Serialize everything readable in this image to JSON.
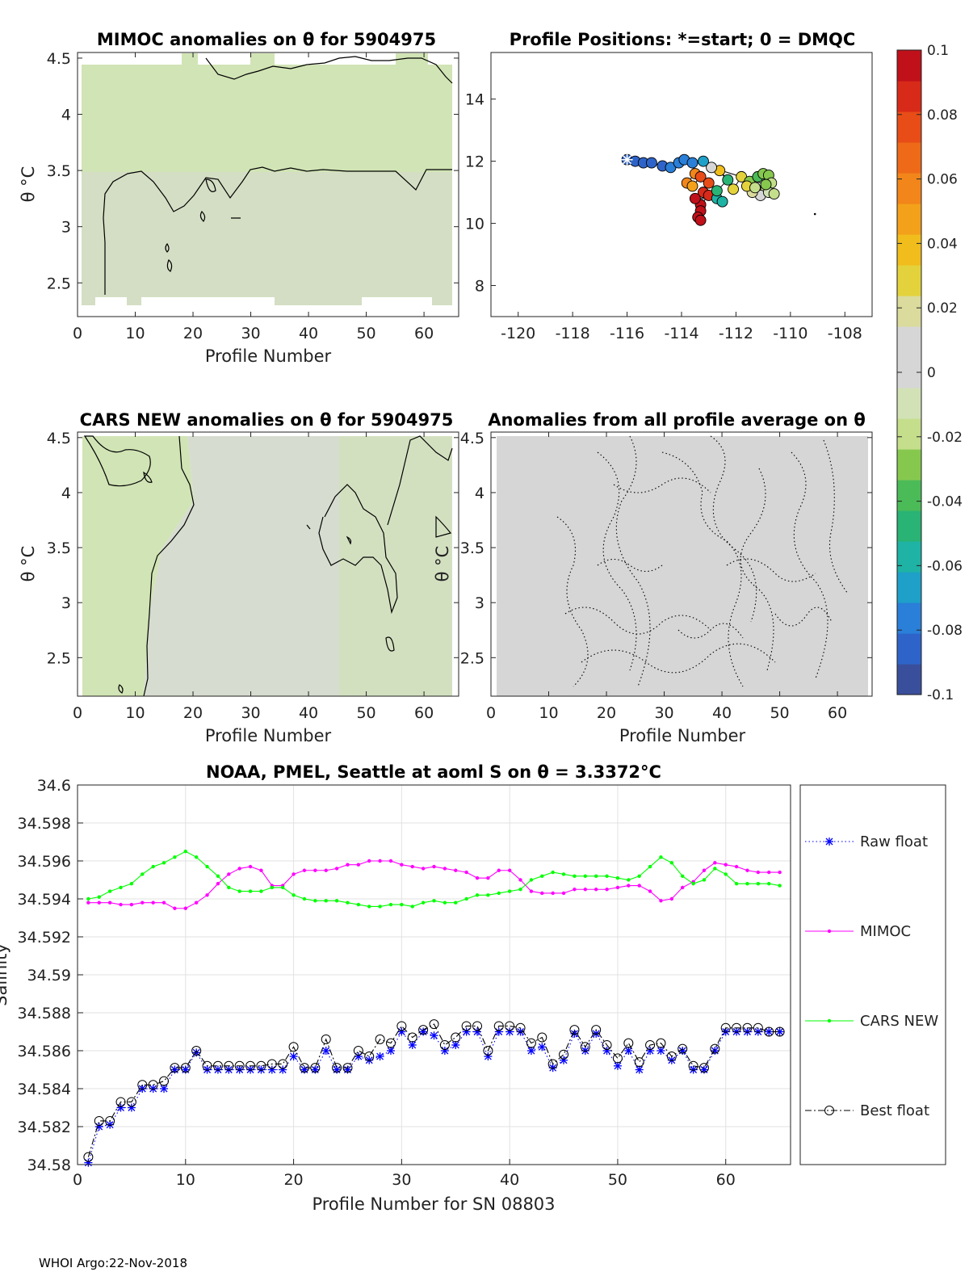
{
  "footer": "WHOI Argo:22-Nov-2018",
  "colorbar": {
    "ticks": [
      "0.1",
      "0.08",
      "0.06",
      "0.04",
      "0.02",
      "0",
      "-0.02",
      "-0.04",
      "-0.06",
      "-0.08",
      "-0.1"
    ],
    "range": [
      -0.1,
      0.1
    ],
    "colors": [
      "#3a4f9c",
      "#2e64c9",
      "#2a7fd8",
      "#1ea0c8",
      "#1eb3a4",
      "#29b374",
      "#4bbb58",
      "#86c84e",
      "#c4de8c",
      "#d2e2b6",
      "#d6d6d6",
      "#d6d6d6",
      "#dadb9c",
      "#e3d23c",
      "#f0bd1c",
      "#f3a11a",
      "#f2861a",
      "#ee6a18",
      "#e84d17",
      "#d82a18",
      "#c0101a"
    ]
  },
  "chart_data": [
    {
      "type": "heatmap",
      "title": "MIMOC anomalies on θ  for 5904975",
      "xlabel": "Profile Number",
      "ylabel": "θ °C",
      "xlim": [
        0,
        66
      ],
      "ylim": [
        2.2,
        4.55
      ],
      "xticks": [
        "0",
        "10",
        "20",
        "30",
        "40",
        "50",
        "60"
      ],
      "yticks": [
        "2.5",
        "3",
        "3.5",
        "4",
        "4.5"
      ],
      "fill": "near -0.015 above θ≈3.45 °C, near -0.01 below"
    },
    {
      "type": "scatter",
      "title": "Profile Positions: *=start; 0 = DMQC",
      "xlim": [
        -121,
        -107
      ],
      "ylim": [
        7,
        15.5
      ],
      "xticks": [
        "-120",
        "-118",
        "-116",
        "-114",
        "-112",
        "-110",
        "-108"
      ],
      "yticks": [
        "8",
        "10",
        "12",
        "14"
      ],
      "start": [
        -116.0,
        12.05
      ],
      "points": [
        [
          -116.0,
          12.05,
          -0.09
        ],
        [
          -115.7,
          12.0,
          -0.088
        ],
        [
          -115.4,
          11.95,
          -0.086
        ],
        [
          -115.1,
          11.95,
          -0.084
        ],
        [
          -114.7,
          11.85,
          -0.082
        ],
        [
          -114.4,
          11.8,
          -0.08
        ],
        [
          -114.1,
          11.95,
          -0.078
        ],
        [
          -113.9,
          12.05,
          -0.075
        ],
        [
          -113.6,
          11.95,
          -0.072
        ],
        [
          -113.5,
          11.6,
          0.06
        ],
        [
          -113.8,
          11.3,
          0.058
        ],
        [
          -113.6,
          11.2,
          0.05
        ],
        [
          -113.3,
          11.5,
          0.075
        ],
        [
          -113.0,
          11.3,
          0.08
        ],
        [
          -113.2,
          11.0,
          0.085
        ],
        [
          -113.0,
          10.9,
          0.09
        ],
        [
          -113.3,
          10.6,
          0.095
        ],
        [
          -113.3,
          10.4,
          0.098
        ],
        [
          -113.4,
          10.2,
          0.1
        ],
        [
          -113.3,
          10.1,
          0.1
        ],
        [
          -113.5,
          10.8,
          0.092
        ],
        [
          -112.7,
          10.8,
          -0.06
        ],
        [
          -112.5,
          10.7,
          -0.055
        ],
        [
          -112.7,
          11.05,
          -0.05
        ],
        [
          -112.3,
          11.4,
          -0.045
        ],
        [
          -112.6,
          11.7,
          0.035
        ],
        [
          -112.1,
          11.1,
          0.03
        ],
        [
          -111.8,
          11.5,
          0.025
        ],
        [
          -111.5,
          11.35,
          -0.03
        ],
        [
          -111.2,
          11.5,
          -0.035
        ],
        [
          -111.0,
          11.6,
          -0.03
        ],
        [
          -110.8,
          11.55,
          -0.025
        ],
        [
          -110.7,
          11.3,
          -0.02
        ],
        [
          -110.9,
          11.1,
          0.015
        ],
        [
          -111.1,
          10.9,
          0.01
        ],
        [
          -110.8,
          11.0,
          -0.01
        ],
        [
          -110.6,
          10.95,
          -0.015
        ],
        [
          -111.4,
          11.0,
          0.02
        ],
        [
          -111.6,
          11.2,
          0.03
        ],
        [
          -111.3,
          11.15,
          -0.02
        ],
        [
          -110.9,
          11.25,
          -0.025
        ],
        [
          -112.9,
          11.8,
          0.005
        ],
        [
          -113.2,
          12.0,
          -0.07
        ]
      ]
    },
    {
      "type": "heatmap",
      "title": "CARS NEW anomalies on θ for 5904975",
      "xlabel": "Profile Number",
      "ylabel": "θ °C",
      "xlim": [
        0,
        66
      ],
      "ylim": [
        2.15,
        4.55
      ],
      "xticks": [
        "0",
        "10",
        "20",
        "30",
        "40",
        "50",
        "60"
      ],
      "yticks": [
        "2.5",
        "3",
        "3.5",
        "4",
        "4.5"
      ],
      "fill": "near -0.012 for profiles 1–18 and 44–66, near -0.005 elsewhere"
    },
    {
      "type": "heatmap",
      "title": "Anomalies from all profile average on θ",
      "xlabel": "Profile Number",
      "ylabel": "θ °C",
      "xlim": [
        0,
        66
      ],
      "ylim": [
        2.15,
        4.55
      ],
      "xticks": [
        "0",
        "10",
        "20",
        "30",
        "40",
        "50",
        "60"
      ],
      "yticks": [
        "2.5",
        "3",
        "3.5",
        "4",
        "4.5"
      ],
      "fill": "near 0 everywhere"
    },
    {
      "type": "line",
      "title": "NOAA, PMEL, Seattle at aoml S on θ = 3.3372°C",
      "xlabel": "Profile Number for SN 08803",
      "ylabel": "Salinity",
      "xlim": [
        0,
        66
      ],
      "ylim": [
        34.58,
        34.6
      ],
      "grid": true,
      "legend": "right",
      "xticks": [
        "0",
        "10",
        "20",
        "30",
        "40",
        "50",
        "60"
      ],
      "yticks": [
        "34.58",
        "34.582",
        "34.584",
        "34.586",
        "34.588",
        "34.59",
        "34.592",
        "34.594",
        "34.596",
        "34.598",
        "34.6"
      ],
      "x": [
        1,
        2,
        3,
        4,
        5,
        6,
        7,
        8,
        9,
        10,
        11,
        12,
        13,
        14,
        15,
        16,
        17,
        18,
        19,
        20,
        21,
        22,
        23,
        24,
        25,
        26,
        27,
        28,
        29,
        30,
        31,
        32,
        33,
        34,
        35,
        36,
        37,
        38,
        39,
        40,
        41,
        42,
        43,
        44,
        45,
        46,
        47,
        48,
        49,
        50,
        51,
        52,
        53,
        54,
        55,
        56,
        57,
        58,
        59,
        60,
        61,
        62,
        63,
        64,
        65
      ],
      "series": [
        {
          "name": "Raw float",
          "color": "#0000ff",
          "style": "dotted",
          "marker": "star",
          "values": [
            34.5801,
            34.582,
            34.5821,
            34.583,
            34.583,
            34.584,
            34.584,
            34.584,
            34.585,
            34.585,
            34.5859,
            34.585,
            34.585,
            34.585,
            34.585,
            34.585,
            34.585,
            34.585,
            34.585,
            34.5857,
            34.585,
            34.585,
            34.586,
            34.585,
            34.585,
            34.5857,
            34.5855,
            34.5857,
            34.586,
            34.587,
            34.5863,
            34.587,
            34.5868,
            34.586,
            34.5863,
            34.587,
            34.587,
            34.5857,
            34.587,
            34.587,
            34.587,
            34.586,
            34.5862,
            34.5851,
            34.5855,
            34.5869,
            34.586,
            34.5869,
            34.586,
            34.5852,
            34.586,
            34.585,
            34.586,
            34.586,
            34.5855,
            34.586,
            34.585,
            34.585,
            34.586,
            34.587,
            34.587,
            34.587,
            34.587,
            34.587,
            34.587
          ]
        },
        {
          "name": "MIMOC",
          "color": "#ff00ff",
          "style": "solid",
          "marker": "dot",
          "values": [
            34.5938,
            34.5938,
            34.5938,
            34.5937,
            34.5937,
            34.5938,
            34.5938,
            34.5938,
            34.5935,
            34.5935,
            34.5938,
            34.5942,
            34.5948,
            34.5953,
            34.5956,
            34.5957,
            34.5955,
            34.5947,
            34.5947,
            34.5953,
            34.5955,
            34.5955,
            34.5955,
            34.5956,
            34.5958,
            34.5958,
            34.596,
            34.596,
            34.596,
            34.5958,
            34.5957,
            34.5956,
            34.5957,
            34.5956,
            34.5955,
            34.5954,
            34.5951,
            34.5951,
            34.5955,
            34.5955,
            34.595,
            34.5944,
            34.5943,
            34.5943,
            34.5943,
            34.5945,
            34.5945,
            34.5945,
            34.5945,
            34.5946,
            34.5947,
            34.5947,
            34.5944,
            34.5939,
            34.594,
            34.5946,
            34.5949,
            34.5955,
            34.5959,
            34.5958,
            34.5957,
            34.5955,
            34.5954,
            34.5954,
            34.5954
          ]
        },
        {
          "name": "CARS NEW",
          "color": "#00ff00",
          "style": "solid",
          "marker": "dot",
          "values": [
            34.594,
            34.5941,
            34.5944,
            34.5946,
            34.5948,
            34.5953,
            34.5957,
            34.5959,
            34.5962,
            34.5965,
            34.5962,
            34.5957,
            34.5952,
            34.5946,
            34.5944,
            34.5944,
            34.5944,
            34.5946,
            34.5946,
            34.5942,
            34.594,
            34.5939,
            34.5939,
            34.5939,
            34.5938,
            34.5937,
            34.5936,
            34.5936,
            34.5937,
            34.5937,
            34.5936,
            34.5938,
            34.5939,
            34.5938,
            34.5938,
            34.594,
            34.5942,
            34.5942,
            34.5943,
            34.5944,
            34.5945,
            34.595,
            34.5952,
            34.5954,
            34.5953,
            34.5952,
            34.5952,
            34.5952,
            34.5952,
            34.5951,
            34.595,
            34.5952,
            34.5957,
            34.5962,
            34.5959,
            34.5952,
            34.5948,
            34.595,
            34.5956,
            34.5953,
            34.5948,
            34.5948,
            34.5948,
            34.5948,
            34.5947
          ]
        },
        {
          "name": "Best float",
          "color": "#000000",
          "style": "dashdot",
          "marker": "circle",
          "values": [
            34.5804,
            34.5823,
            34.5823,
            34.5833,
            34.5833,
            34.5842,
            34.5842,
            34.5844,
            34.5851,
            34.5851,
            34.586,
            34.5852,
            34.5852,
            34.5852,
            34.5852,
            34.5852,
            34.5852,
            34.5853,
            34.5853,
            34.5862,
            34.5851,
            34.5851,
            34.5866,
            34.5851,
            34.5851,
            34.586,
            34.5857,
            34.5866,
            34.5864,
            34.5873,
            34.5867,
            34.5871,
            34.5874,
            34.5863,
            34.5867,
            34.5873,
            34.5873,
            34.586,
            34.5873,
            34.5873,
            34.5872,
            34.5864,
            34.5867,
            34.5853,
            34.5858,
            34.5871,
            34.5862,
            34.5871,
            34.5863,
            34.5856,
            34.5864,
            34.5854,
            34.5863,
            34.5864,
            34.5857,
            34.5861,
            34.5852,
            34.5851,
            34.5861,
            34.5872,
            34.5872,
            34.5872,
            34.5872,
            34.587,
            34.587
          ]
        }
      ]
    }
  ]
}
